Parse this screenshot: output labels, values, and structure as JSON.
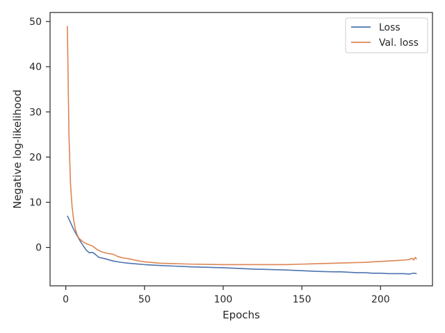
{
  "chart_data": {
    "type": "line",
    "xlabel": "Epochs",
    "ylabel": "Negative log-likelihood",
    "xlim": [
      -10,
      233
    ],
    "ylim": [
      -8.5,
      52
    ],
    "xticks": [
      0,
      50,
      100,
      150,
      200
    ],
    "yticks": [
      0,
      10,
      20,
      30,
      40,
      50
    ],
    "grid": false,
    "legend": "top-right",
    "series": [
      {
        "name": "Loss",
        "color": "#4c72b0",
        "x": [
          1,
          3,
          5,
          7,
          9,
          11,
          13,
          15,
          17,
          19,
          21,
          25,
          30,
          35,
          40,
          50,
          60,
          80,
          100,
          120,
          140,
          160,
          170,
          175,
          180,
          185,
          190,
          195,
          200,
          205,
          210,
          215,
          218,
          221,
          223
        ],
        "y": [
          7.0,
          5.5,
          4.0,
          2.7,
          1.5,
          0.4,
          -0.6,
          -1.2,
          -1.1,
          -1.6,
          -2.2,
          -2.5,
          -3.0,
          -3.3,
          -3.5,
          -3.8,
          -4.0,
          -4.3,
          -4.5,
          -4.8,
          -5.0,
          -5.3,
          -5.4,
          -5.4,
          -5.5,
          -5.6,
          -5.6,
          -5.7,
          -5.7,
          -5.8,
          -5.8,
          -5.8,
          -5.9,
          -5.7,
          -5.8
        ]
      },
      {
        "name": "Val. loss",
        "color": "#dd8452",
        "x": [
          1,
          2,
          3,
          4,
          5,
          6,
          7,
          8,
          10,
          12,
          14,
          17,
          20,
          23,
          26,
          30,
          33,
          36,
          40,
          45,
          50,
          60,
          70,
          80,
          100,
          120,
          140,
          150,
          160,
          170,
          180,
          190,
          200,
          205,
          210,
          215,
          218,
          220,
          221,
          222,
          223
        ],
        "y": [
          49.0,
          25.0,
          14.0,
          9.0,
          6.0,
          4.2,
          3.0,
          2.2,
          1.5,
          1.0,
          0.7,
          0.3,
          -0.5,
          -1.0,
          -1.3,
          -1.5,
          -2.0,
          -2.3,
          -2.5,
          -2.9,
          -3.2,
          -3.5,
          -3.6,
          -3.7,
          -3.8,
          -3.8,
          -3.8,
          -3.7,
          -3.6,
          -3.5,
          -3.4,
          -3.3,
          -3.1,
          -3.0,
          -2.9,
          -2.8,
          -2.7,
          -2.4,
          -2.8,
          -2.2,
          -2.6
        ]
      }
    ]
  }
}
